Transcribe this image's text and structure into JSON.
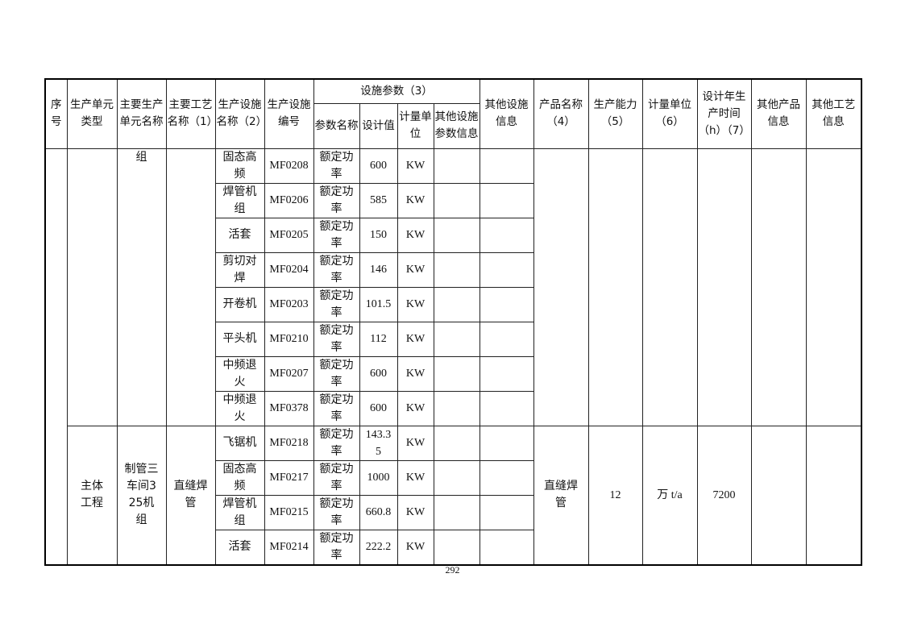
{
  "header": {
    "seq": "序号",
    "unit_type": "生产单元类型",
    "unit_name": "主要生产单元名称",
    "process": "主要工艺名称（1）",
    "facility_name": "生产设施名称（2）",
    "facility_code": "生产设施编号",
    "params_group": "设施参数（3）",
    "param_name": "参数名称",
    "design_value": "设计值",
    "unit": "计量单位",
    "other_param": "其他设施参数信息",
    "other_facility": "其他设施信息",
    "product": "产品名称（4）",
    "capacity": "生产能力（5）",
    "cap_unit": "计量单位（6）",
    "hours": "设计年生产时间（h）（7）",
    "other_product": "其他产品信息",
    "other_process": "其他工艺信息"
  },
  "groups": [
    {
      "seq": "",
      "unit_type": "",
      "unit_name": "组",
      "process": "",
      "product": "",
      "capacity": "",
      "cap_unit": "",
      "hours": "",
      "rows": [
        {
          "name": "固态高频",
          "code": "MF0208",
          "param": "额定功率",
          "value": "600",
          "unit": "KW"
        },
        {
          "name": "焊管机组",
          "code": "MF0206",
          "param": "额定功率",
          "value": "585",
          "unit": "KW"
        },
        {
          "name": "活套",
          "code": "MF0205",
          "param": "额定功率",
          "value": "150",
          "unit": "KW"
        },
        {
          "name": "剪切对焊",
          "code": "MF0204",
          "param": "额定功率",
          "value": "146",
          "unit": "KW"
        },
        {
          "name": "开卷机",
          "code": "MF0203",
          "param": "额定功率",
          "value": "101.5",
          "unit": "KW"
        },
        {
          "name": "平头机",
          "code": "MF0210",
          "param": "额定功率",
          "value": "112",
          "unit": "KW"
        },
        {
          "name": "中频退火",
          "code": "MF0207",
          "param": "额定功率",
          "value": "600",
          "unit": "KW"
        },
        {
          "name": "中频退火",
          "code": "MF0378",
          "param": "额定功率",
          "value": "600",
          "unit": "KW"
        }
      ]
    },
    {
      "unit_type": "主体工程",
      "unit_name": "制管三车间325机组",
      "process": "直缝焊管",
      "product": "直缝焊管",
      "capacity": "12",
      "cap_unit": "万 t/a",
      "hours": "7200",
      "rows": [
        {
          "name": "飞锯机",
          "code": "MF0218",
          "param": "额定功率",
          "value": "143.35",
          "unit": "KW"
        },
        {
          "name": "固态高频",
          "code": "MF0217",
          "param": "额定功率",
          "value": "1000",
          "unit": "KW"
        },
        {
          "name": "焊管机组",
          "code": "MF0215",
          "param": "额定功率",
          "value": "660.8",
          "unit": "KW"
        },
        {
          "name": "活套",
          "code": "MF0214",
          "param": "额定功率",
          "value": "222.2",
          "unit": "KW"
        }
      ]
    }
  ],
  "page_number": "292"
}
